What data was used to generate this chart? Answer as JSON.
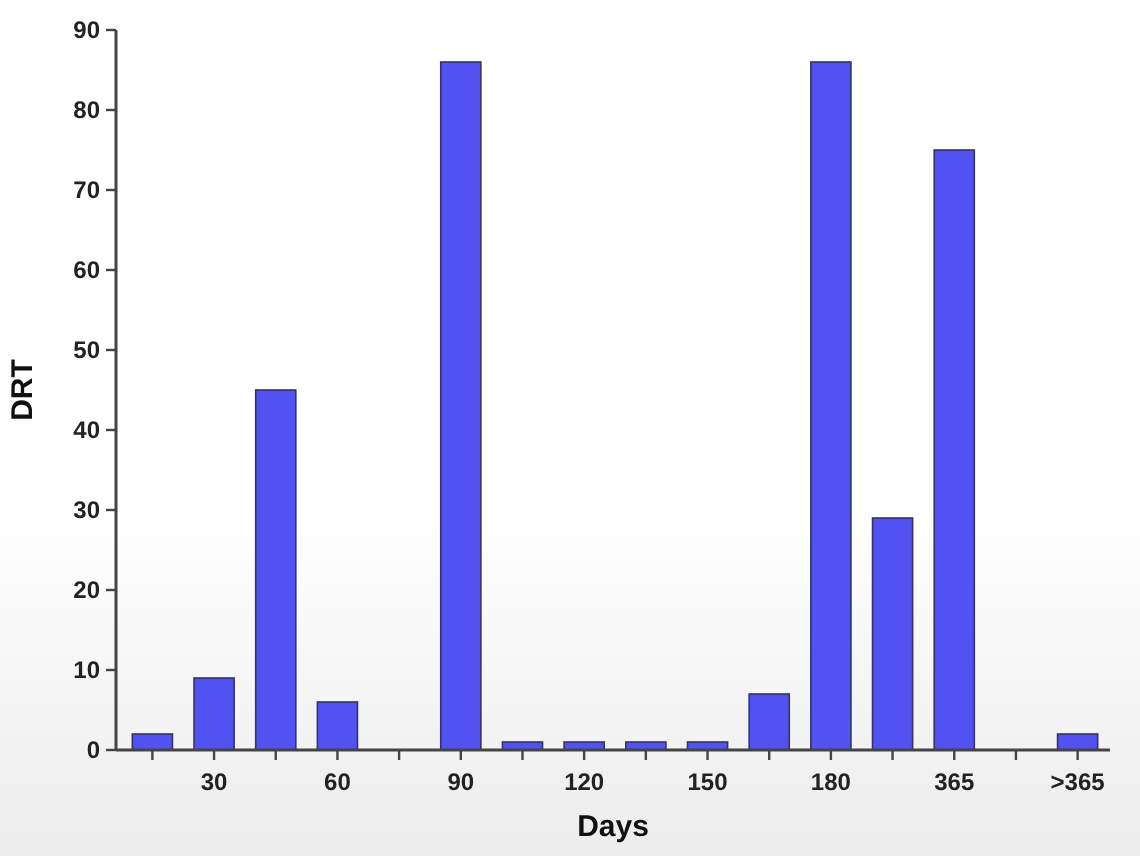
{
  "chart_data": {
    "type": "bar",
    "xlabel": "Days",
    "ylabel": "DRT",
    "categories": [
      null,
      "30",
      null,
      "60",
      null,
      "90",
      null,
      "120",
      null,
      "150",
      null,
      "180",
      null,
      "365",
      null,
      ">365"
    ],
    "values": [
      2,
      9,
      45,
      6,
      null,
      86,
      1,
      1,
      1,
      1,
      7,
      86,
      29,
      75,
      null,
      2
    ],
    "color": "#5252f2",
    "ylim": [
      0,
      90
    ],
    "yticks": [
      0,
      10,
      20,
      30,
      40,
      50,
      60,
      70,
      80,
      90
    ],
    "grid": false
  }
}
